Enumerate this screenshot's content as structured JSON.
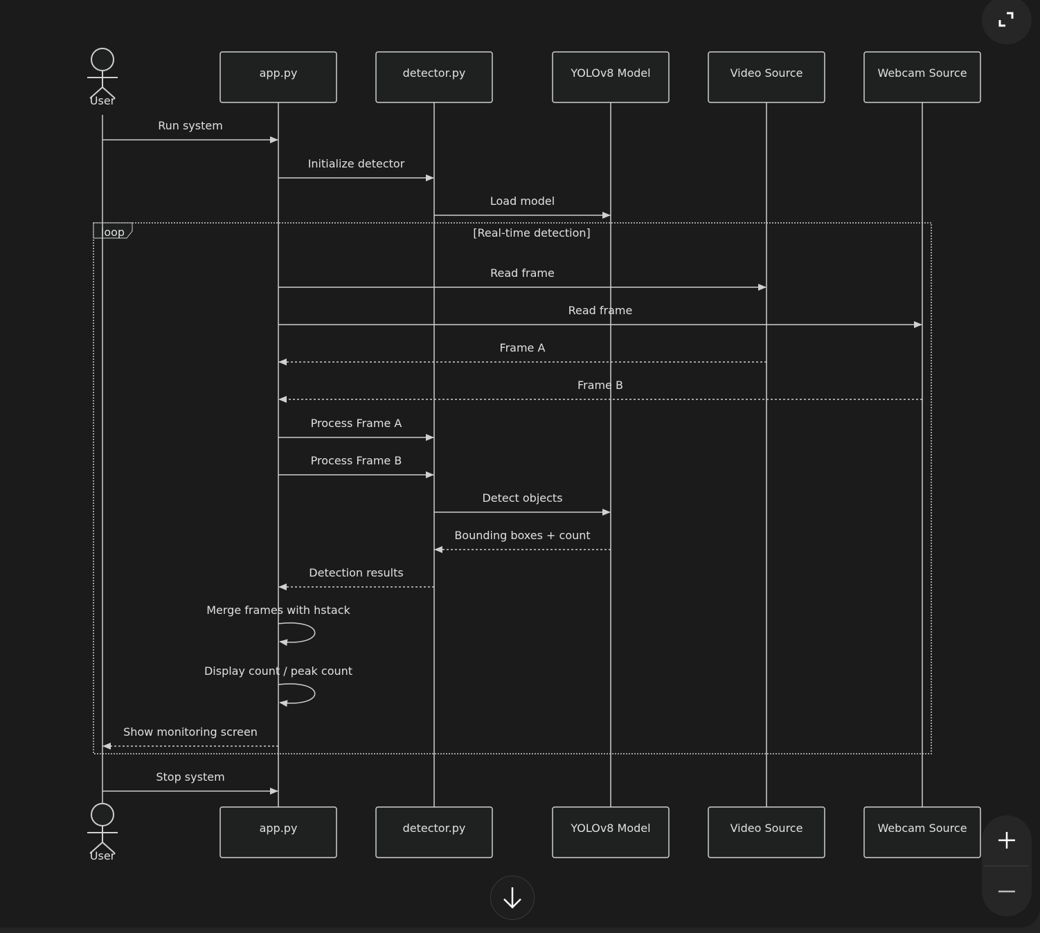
{
  "diagram": {
    "actor": {
      "label": "User"
    },
    "participants": [
      {
        "id": "app",
        "label": "app.py"
      },
      {
        "id": "det",
        "label": "detector.py"
      },
      {
        "id": "yolo",
        "label": "YOLOv8 Model"
      },
      {
        "id": "video",
        "label": "Video Source"
      },
      {
        "id": "webcam",
        "label": "Webcam Source"
      }
    ],
    "loop": {
      "keyword": "loop",
      "condition": "[Real-time detection]"
    },
    "messages": [
      {
        "from": "user",
        "to": "app",
        "label": "Run system",
        "dashed": false
      },
      {
        "from": "app",
        "to": "det",
        "label": "Initialize detector",
        "dashed": false
      },
      {
        "from": "det",
        "to": "yolo",
        "label": "Load model",
        "dashed": false
      },
      {
        "from": "app",
        "to": "video",
        "label": "Read frame",
        "dashed": false
      },
      {
        "from": "app",
        "to": "webcam",
        "label": "Read frame",
        "dashed": false
      },
      {
        "from": "video",
        "to": "app",
        "label": "Frame A",
        "dashed": true
      },
      {
        "from": "webcam",
        "to": "app",
        "label": "Frame B",
        "dashed": true
      },
      {
        "from": "app",
        "to": "det",
        "label": "Process Frame A",
        "dashed": false
      },
      {
        "from": "app",
        "to": "det",
        "label": "Process Frame B",
        "dashed": false
      },
      {
        "from": "det",
        "to": "yolo",
        "label": "Detect objects",
        "dashed": false
      },
      {
        "from": "yolo",
        "to": "det",
        "label": "Bounding boxes + count",
        "dashed": true
      },
      {
        "from": "det",
        "to": "app",
        "label": "Detection results",
        "dashed": true
      },
      {
        "from": "app",
        "to": "app",
        "label": "Merge frames with hstack",
        "dashed": false
      },
      {
        "from": "app",
        "to": "app",
        "label": "Display count / peak count",
        "dashed": false
      },
      {
        "from": "app",
        "to": "user",
        "label": "Show monitoring screen",
        "dashed": true
      },
      {
        "from": "user",
        "to": "app",
        "label": "Stop system",
        "dashed": false
      }
    ]
  },
  "controls": {
    "fullscreen_icon": "expand-icon",
    "scroll_icon": "arrow-down-icon",
    "zoom_in_icon": "plus-icon",
    "zoom_out_icon": "minus-icon"
  },
  "colors": {
    "background": "#1b1b1b",
    "line": "#d0d0d0",
    "box_fill": "#1f2020",
    "text": "#e0e0e0"
  }
}
